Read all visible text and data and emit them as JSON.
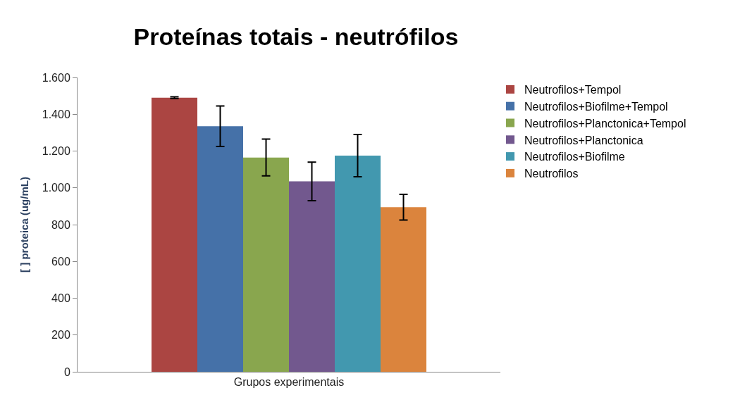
{
  "chart_data": {
    "type": "bar",
    "title": "Proteínas totais - neutrófilos",
    "ylabel": "[ ] proteica (ug/mL)",
    "categories": [
      "Grupos experimentais"
    ],
    "series": [
      {
        "name": "Neutrofilos+Tempol",
        "color": "#ab4542",
        "values": [
          1490
        ],
        "errors": [
          5
        ]
      },
      {
        "name": "Neutrofilos+Biofilme+Tempol",
        "color": "#4571a8",
        "values": [
          1335
        ],
        "errors": [
          110
        ]
      },
      {
        "name": "Neutrofilos+Planctonica+Tempol",
        "color": "#89a64e",
        "values": [
          1165
        ],
        "errors": [
          100
        ]
      },
      {
        "name": "Neutrofilos+Planctonica",
        "color": "#72588e",
        "values": [
          1035
        ],
        "errors": [
          105
        ]
      },
      {
        "name": "Neutrofilos+Biofilme",
        "color": "#4298af",
        "values": [
          1175
        ],
        "errors": [
          115
        ]
      },
      {
        "name": "Neutrofilos",
        "color": "#db843d",
        "values": [
          895
        ],
        "errors": [
          70
        ]
      }
    ],
    "ylim": [
      0,
      1600
    ],
    "yticks": [
      0,
      200,
      400,
      600,
      800,
      {
        "value": 1000,
        "label": "1.000"
      },
      {
        "value": 1200,
        "label": "1.200"
      },
      {
        "value": 1400,
        "label": "1.400"
      },
      {
        "value": 1600,
        "label": "1.600"
      }
    ],
    "legend": "right"
  }
}
